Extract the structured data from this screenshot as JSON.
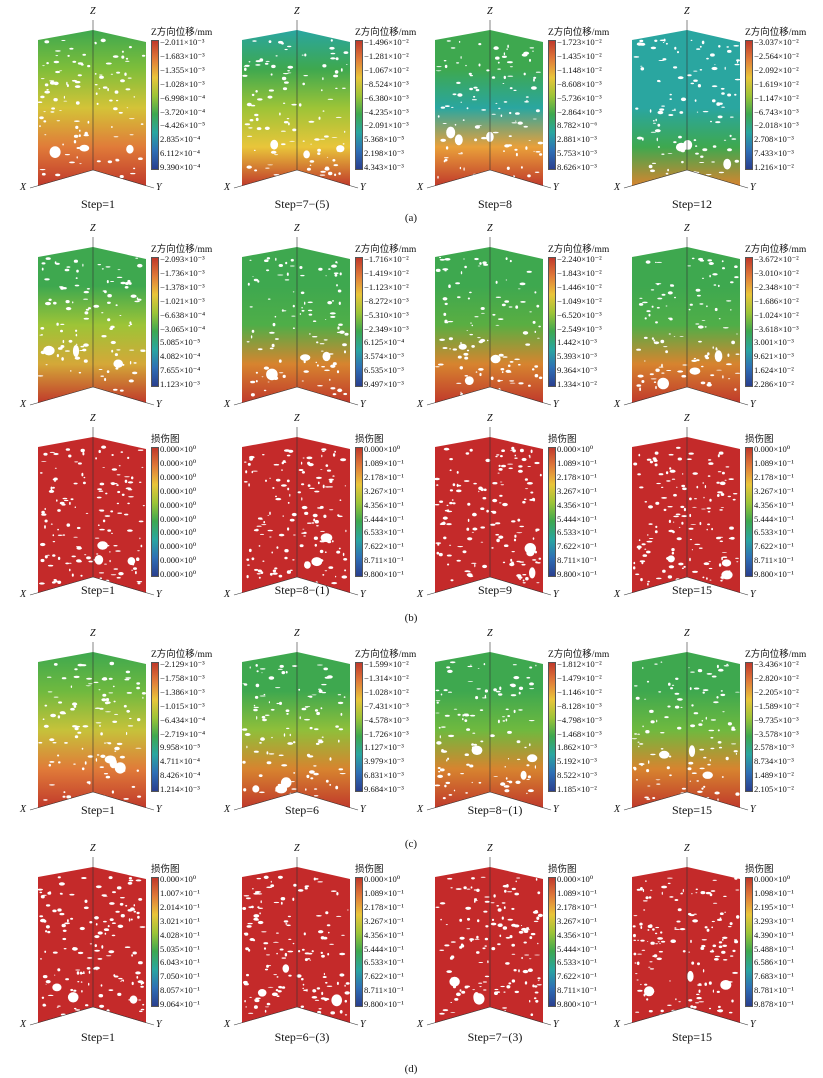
{
  "colors": {
    "gradient": [
      "#c0392b",
      "#e07b39",
      "#e9c53a",
      "#9dc437",
      "#3ea84f",
      "#2aa6a0",
      "#2e6fb5",
      "#2a3f8f"
    ],
    "ticks_gradient_top_to_bottom": "red-to-blue",
    "hole": "#ffffff"
  },
  "section_labels": [
    "(a)",
    "(b)",
    "(c)",
    "(d)"
  ],
  "axes": {
    "x": "X",
    "y": "Y",
    "z": "Z"
  },
  "rows": [
    {
      "section": "(a)",
      "panels": [
        {
          "step": "Step=1",
          "title": "Z方向位移/mm",
          "kind": "disp",
          "ticks": [
            "−2.011×10⁻³",
            "−1.683×10⁻³",
            "−1.355×10⁻³",
            "−1.028×10⁻³",
            "−6.998×10⁻⁴",
            "−3.720×10⁻⁴",
            "−4.426×10⁻⁵",
            "2.835×10⁻⁴",
            "6.112×10⁻⁴",
            "9.390×10⁻⁴"
          ],
          "palette": [
            "#3ea84f",
            "#7fbe3a",
            "#d4c338",
            "#e07b39",
            "#c0392b"
          ]
        },
        {
          "step": "Step=7−(5)",
          "title": "Z方向位移/mm",
          "kind": "disp",
          "ticks": [
            "−1.496×10⁻²",
            "−1.281×10⁻²",
            "−1.067×10⁻²",
            "−8.524×10⁻³",
            "−6.380×10⁻³",
            "−4.235×10⁻³",
            "−2.091×10⁻³",
            "5.368×10⁻⁵",
            "2.198×10⁻³",
            "4.343×10⁻³"
          ],
          "palette": [
            "#2aa6a0",
            "#3ea84f",
            "#9dc437",
            "#e9c53a",
            "#c0392b"
          ]
        },
        {
          "step": "Step=8",
          "title": "Z方向位移/mm",
          "kind": "disp",
          "ticks": [
            "−1.723×10⁻²",
            "−1.435×10⁻²",
            "−1.148×10⁻²",
            "−8.608×10⁻³",
            "−5.736×10⁻³",
            "−2.864×10⁻³",
            "8.782×10⁻⁶",
            "2.881×10⁻³",
            "5.753×10⁻³",
            "8.626×10⁻³"
          ],
          "palette": [
            "#3ea84f",
            "#3ea84f",
            "#2aa6a0",
            "#e9a03a",
            "#c0392b"
          ]
        },
        {
          "step": "Step=12",
          "title": "Z方向位移/mm",
          "kind": "disp",
          "ticks": [
            "−3.037×10⁻²",
            "−2.564×10⁻²",
            "−2.092×10⁻²",
            "−1.619×10⁻²",
            "−1.147×10⁻²",
            "−6.743×10⁻³",
            "−2.018×10⁻³",
            "2.708×10⁻³",
            "7.433×10⁻³",
            "1.216×10⁻²"
          ],
          "palette": [
            "#2aa6a0",
            "#2aa6a0",
            "#2aa6a0",
            "#3ea84f",
            "#d7842f"
          ]
        }
      ]
    },
    {
      "section": "(b)",
      "panels": [
        {
          "step": "",
          "title": "Z方向位移/mm",
          "kind": "disp",
          "ticks": [
            "−2.093×10⁻³",
            "−1.736×10⁻³",
            "−1.378×10⁻³",
            "−1.021×10⁻³",
            "−6.638×10⁻⁴",
            "−3.065×10⁻⁴",
            "5.085×10⁻⁵",
            "4.082×10⁻⁴",
            "7.655×10⁻⁴",
            "1.123×10⁻³"
          ],
          "palette": [
            "#3ea84f",
            "#3ea84f",
            "#9dc437",
            "#d4a838",
            "#c0392b"
          ]
        },
        {
          "step": "",
          "title": "Z方向位移/mm",
          "kind": "disp",
          "ticks": [
            "−1.716×10⁻²",
            "−1.419×10⁻²",
            "−1.123×10⁻²",
            "−8.272×10⁻³",
            "−5.310×10⁻³",
            "−2.349×10⁻³",
            "6.125×10⁻⁴",
            "3.574×10⁻³",
            "6.535×10⁻³",
            "9.497×10⁻³"
          ],
          "palette": [
            "#3ea84f",
            "#3ea84f",
            "#4fae48",
            "#d7842f",
            "#c0392b"
          ]
        },
        {
          "step": "",
          "title": "Z方向位移/mm",
          "kind": "disp",
          "ticks": [
            "−2.240×10⁻²",
            "−1.843×10⁻²",
            "−1.446×10⁻²",
            "−1.049×10⁻²",
            "−6.520×10⁻³",
            "−2.549×10⁻³",
            "1.442×10⁻³",
            "5.393×10⁻³",
            "9.364×10⁻³",
            "1.334×10⁻²"
          ],
          "palette": [
            "#3ea84f",
            "#3ea84f",
            "#5aae42",
            "#d7842f",
            "#c0392b"
          ]
        },
        {
          "step": "",
          "title": "Z方向位移/mm",
          "kind": "disp",
          "ticks": [
            "−3.672×10⁻²",
            "−3.010×10⁻²",
            "−2.348×10⁻²",
            "−1.686×10⁻²",
            "−1.024×10⁻²",
            "−3.618×10⁻³",
            "3.001×10⁻³",
            "9.621×10⁻³",
            "1.624×10⁻²",
            "2.286×10⁻²"
          ],
          "palette": [
            "#3ea84f",
            "#3ea84f",
            "#4fae48",
            "#d7842f",
            "#c0392b"
          ]
        }
      ]
    },
    {
      "section": "",
      "panels": [
        {
          "step": "Step=1",
          "title": "损伤图",
          "kind": "damage",
          "ticks": [
            "0.000×10⁰",
            "0.000×10⁰",
            "0.000×10⁰",
            "0.000×10⁰",
            "0.000×10⁰",
            "0.000×10⁰",
            "0.000×10⁰",
            "0.000×10⁰",
            "0.000×10⁰",
            "0.000×10⁰"
          ],
          "palette": [
            "#c42a2a",
            "#c42a2a",
            "#c42a2a",
            "#c42a2a",
            "#c42a2a"
          ]
        },
        {
          "step": "Step=8−(1)",
          "title": "损伤图",
          "kind": "damage",
          "ticks": [
            "0.000×10⁰",
            "1.089×10⁻¹",
            "2.178×10⁻¹",
            "3.267×10⁻¹",
            "4.356×10⁻¹",
            "5.444×10⁻¹",
            "6.533×10⁻¹",
            "7.622×10⁻¹",
            "8.711×10⁻¹",
            "9.800×10⁻¹"
          ],
          "palette": [
            "#c42a2a",
            "#c42a2a",
            "#c42a2a",
            "#c42a2a",
            "#c42a2a"
          ]
        },
        {
          "step": "Step=9",
          "title": "损伤图",
          "kind": "damage",
          "ticks": [
            "0.000×10⁰",
            "1.089×10⁻¹",
            "2.178×10⁻¹",
            "3.267×10⁻¹",
            "4.356×10⁻¹",
            "5.444×10⁻¹",
            "6.533×10⁻¹",
            "7.622×10⁻¹",
            "8.711×10⁻¹",
            "9.800×10⁻¹"
          ],
          "palette": [
            "#c42a2a",
            "#c42a2a",
            "#c42a2a",
            "#c42a2a",
            "#c42a2a"
          ]
        },
        {
          "step": "Step=15",
          "title": "损伤图",
          "kind": "damage",
          "ticks": [
            "0.000×10⁰",
            "1.089×10⁻¹",
            "2.178×10⁻¹",
            "3.267×10⁻¹",
            "4.356×10⁻¹",
            "5.444×10⁻¹",
            "6.533×10⁻¹",
            "7.622×10⁻¹",
            "8.711×10⁻¹",
            "9.800×10⁻¹"
          ],
          "palette": [
            "#c42a2a",
            "#c42a2a",
            "#c42a2a",
            "#c42a2a",
            "#c42a2a"
          ]
        }
      ]
    },
    {
      "section": "(c)",
      "panels": [
        {
          "step": "Step=1",
          "title": "Z方向位移/mm",
          "kind": "disp",
          "ticks": [
            "−2.129×10⁻³",
            "−1.758×10⁻³",
            "−1.386×10⁻³",
            "−1.015×10⁻³",
            "−6.434×10⁻⁴",
            "−2.719×10⁻⁴",
            "9.958×10⁻⁵",
            "4.711×10⁻⁴",
            "8.426×10⁻⁴",
            "1.214×10⁻³"
          ],
          "palette": [
            "#3ea84f",
            "#6fb93f",
            "#c6c23a",
            "#e07b39",
            "#c0392b"
          ]
        },
        {
          "step": "Step=6",
          "title": "Z方向位移/mm",
          "kind": "disp",
          "ticks": [
            "−1.599×10⁻²",
            "−1.314×10⁻²",
            "−1.028×10⁻²",
            "−7.431×10⁻³",
            "−4.578×10⁻³",
            "−1.726×10⁻³",
            "1.127×10⁻³",
            "3.979×10⁻³",
            "6.831×10⁻³",
            "9.684×10⁻³"
          ],
          "palette": [
            "#3ea84f",
            "#3ea84f",
            "#8fbf3a",
            "#d7842f",
            "#c0392b"
          ]
        },
        {
          "step": "Step=8−(1)",
          "title": "Z方向位移/mm",
          "kind": "disp",
          "ticks": [
            "−1.812×10⁻²",
            "−1.479×10⁻²",
            "−1.146×10⁻²",
            "−8.128×10⁻³",
            "−4.798×10⁻³",
            "−1.468×10⁻³",
            "1.862×10⁻³",
            "5.192×10⁻³",
            "8.522×10⁻³",
            "1.185×10⁻²"
          ],
          "palette": [
            "#3ea84f",
            "#3ea84f",
            "#6fb93f",
            "#d7842f",
            "#c0392b"
          ]
        },
        {
          "step": "Step=15",
          "title": "Z方向位移/mm",
          "kind": "disp",
          "ticks": [
            "−3.436×10⁻²",
            "−2.820×10⁻²",
            "−2.205×10⁻²",
            "−1.589×10⁻²",
            "−9.735×10⁻³",
            "−3.578×10⁻³",
            "2.578×10⁻³",
            "8.734×10⁻³",
            "1.489×10⁻²",
            "2.105×10⁻²"
          ],
          "palette": [
            "#3ea84f",
            "#3ea84f",
            "#6fb93f",
            "#d7842f",
            "#c0392b"
          ]
        }
      ]
    },
    {
      "section": "(d)",
      "panels": [
        {
          "step": "Step=1",
          "title": "损伤图",
          "kind": "damage",
          "ticks": [
            "0.000×10⁰",
            "1.007×10⁻¹",
            "2.014×10⁻¹",
            "3.021×10⁻¹",
            "4.028×10⁻¹",
            "5.035×10⁻¹",
            "6.043×10⁻¹",
            "7.050×10⁻¹",
            "8.057×10⁻¹",
            "9.064×10⁻¹"
          ],
          "palette": [
            "#c42a2a",
            "#c42a2a",
            "#c42a2a",
            "#c42a2a",
            "#c42a2a"
          ]
        },
        {
          "step": "Step=6−(3)",
          "title": "损伤图",
          "kind": "damage",
          "ticks": [
            "0.000×10⁰",
            "1.089×10⁻¹",
            "2.178×10⁻¹",
            "3.267×10⁻¹",
            "4.356×10⁻¹",
            "5.444×10⁻¹",
            "6.533×10⁻¹",
            "7.622×10⁻¹",
            "8.711×10⁻¹",
            "9.800×10⁻¹"
          ],
          "palette": [
            "#c42a2a",
            "#c42a2a",
            "#c42a2a",
            "#c42a2a",
            "#c42a2a"
          ]
        },
        {
          "step": "Step=7−(3)",
          "title": "损伤图",
          "kind": "damage",
          "ticks": [
            "0.000×10⁰",
            "1.089×10⁻¹",
            "2.178×10⁻¹",
            "3.267×10⁻¹",
            "4.356×10⁻¹",
            "5.444×10⁻¹",
            "6.533×10⁻¹",
            "7.622×10⁻¹",
            "8.711×10⁻¹",
            "9.800×10⁻¹"
          ],
          "palette": [
            "#c42a2a",
            "#c42a2a",
            "#c42a2a",
            "#c42a2a",
            "#c42a2a"
          ]
        },
        {
          "step": "Step=15",
          "title": "损伤图",
          "kind": "damage",
          "ticks": [
            "0.000×10⁰",
            "1.098×10⁻¹",
            "2.195×10⁻¹",
            "3.293×10⁻¹",
            "4.390×10⁻¹",
            "5.488×10⁻¹",
            "6.586×10⁻¹",
            "7.683×10⁻¹",
            "8.781×10⁻¹",
            "9.878×10⁻¹"
          ],
          "palette": [
            "#c42a2a",
            "#c42a2a",
            "#c42a2a",
            "#c42a2a",
            "#c42a2a"
          ]
        }
      ]
    }
  ]
}
